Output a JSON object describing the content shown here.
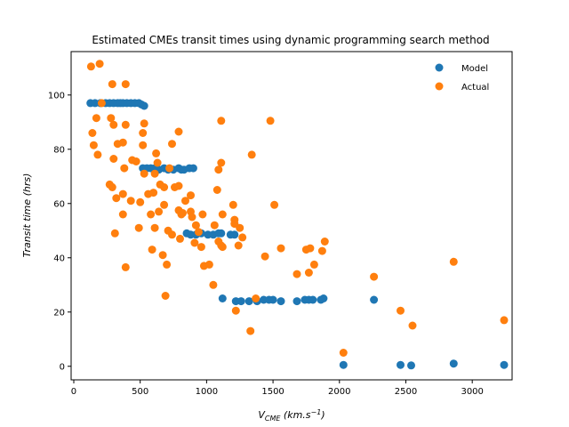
{
  "chart_data": {
    "type": "scatter",
    "title": "Estimated CMEs transit times using dynamic programming search method",
    "xlabel_main": "V",
    "xlabel_sub": "CME",
    "xlabel_units": " (km.s",
    "xlabel_exp": "−1",
    "xlabel_close": ")",
    "ylabel": "Transit time (hrs)",
    "xlim": [
      -20,
      3300
    ],
    "ylim": [
      -5,
      116
    ],
    "xticks": [
      0,
      500,
      1000,
      1500,
      2000,
      2500,
      3000
    ],
    "yticks": [
      0,
      20,
      40,
      60,
      80,
      100
    ],
    "grid": false,
    "legend_position": "top-right",
    "series": [
      {
        "name": "Model",
        "color": "#1f77b4",
        "points": [
          [
            125,
            97
          ],
          [
            160,
            97
          ],
          [
            200,
            97
          ],
          [
            240,
            97
          ],
          [
            270,
            97
          ],
          [
            300,
            97
          ],
          [
            330,
            97
          ],
          [
            350,
            97
          ],
          [
            370,
            97
          ],
          [
            400,
            97
          ],
          [
            430,
            97
          ],
          [
            460,
            97
          ],
          [
            490,
            97
          ],
          [
            510,
            96.5
          ],
          [
            530,
            96
          ],
          [
            520,
            73
          ],
          [
            550,
            73
          ],
          [
            580,
            73
          ],
          [
            610,
            73
          ],
          [
            640,
            72.5
          ],
          [
            680,
            73
          ],
          [
            710,
            72.5
          ],
          [
            750,
            72.5
          ],
          [
            790,
            73
          ],
          [
            810,
            72.5
          ],
          [
            830,
            72.5
          ],
          [
            870,
            73
          ],
          [
            900,
            73
          ],
          [
            850,
            49
          ],
          [
            880,
            48.5
          ],
          [
            920,
            48.5
          ],
          [
            960,
            49
          ],
          [
            1010,
            48.5
          ],
          [
            1050,
            48.5
          ],
          [
            1090,
            49
          ],
          [
            1110,
            49
          ],
          [
            1180,
            48.5
          ],
          [
            1210,
            48.5
          ],
          [
            1120,
            25
          ],
          [
            1220,
            24
          ],
          [
            1260,
            24
          ],
          [
            1320,
            24
          ],
          [
            1380,
            24
          ],
          [
            1430,
            24.5
          ],
          [
            1470,
            24.5
          ],
          [
            1500,
            24.5
          ],
          [
            1560,
            24
          ],
          [
            1680,
            24
          ],
          [
            1740,
            24.5
          ],
          [
            1770,
            24.5
          ],
          [
            1800,
            24.5
          ],
          [
            1860,
            24.5
          ],
          [
            1880,
            25
          ],
          [
            2260,
            24.5
          ],
          [
            2030,
            0.5
          ],
          [
            2460,
            0.5
          ],
          [
            2540,
            0.3
          ],
          [
            2860,
            1
          ],
          [
            3240,
            0.5
          ]
        ]
      },
      {
        "name": "Actual",
        "color": "#ff7f0e",
        "points": [
          [
            130,
            110.5
          ],
          [
            195,
            111.5
          ],
          [
            210,
            97
          ],
          [
            290,
            104
          ],
          [
            390,
            104
          ],
          [
            140,
            86
          ],
          [
            170,
            91.5
          ],
          [
            280,
            91.5
          ],
          [
            300,
            89
          ],
          [
            390,
            89
          ],
          [
            150,
            81.5
          ],
          [
            180,
            78
          ],
          [
            330,
            82
          ],
          [
            370,
            82.5
          ],
          [
            520,
            86
          ],
          [
            530,
            89.5
          ],
          [
            520,
            81.5
          ],
          [
            620,
            78.5
          ],
          [
            740,
            82
          ],
          [
            790,
            86.5
          ],
          [
            270,
            67
          ],
          [
            290,
            66
          ],
          [
            300,
            76.5
          ],
          [
            320,
            62
          ],
          [
            370,
            63.5
          ],
          [
            380,
            73
          ],
          [
            430,
            61
          ],
          [
            440,
            76
          ],
          [
            470,
            75.5
          ],
          [
            500,
            60.5
          ],
          [
            530,
            71
          ],
          [
            560,
            63.5
          ],
          [
            600,
            64
          ],
          [
            610,
            71
          ],
          [
            630,
            75
          ],
          [
            650,
            67
          ],
          [
            680,
            66
          ],
          [
            720,
            73
          ],
          [
            760,
            66
          ],
          [
            790,
            66.5
          ],
          [
            810,
            56
          ],
          [
            840,
            61
          ],
          [
            880,
            63
          ],
          [
            310,
            49
          ],
          [
            370,
            56
          ],
          [
            390,
            36.5
          ],
          [
            490,
            51
          ],
          [
            580,
            56
          ],
          [
            590,
            43
          ],
          [
            610,
            51
          ],
          [
            640,
            57
          ],
          [
            670,
            41
          ],
          [
            680,
            59.5
          ],
          [
            690,
            26
          ],
          [
            700,
            37.5
          ],
          [
            710,
            50
          ],
          [
            740,
            48.5
          ],
          [
            790,
            57.5
          ],
          [
            800,
            47
          ],
          [
            820,
            56.5
          ],
          [
            880,
            57
          ],
          [
            890,
            55
          ],
          [
            910,
            45.5
          ],
          [
            920,
            52
          ],
          [
            940,
            49.5
          ],
          [
            960,
            44
          ],
          [
            970,
            56
          ],
          [
            980,
            37
          ],
          [
            1020,
            37.5
          ],
          [
            1050,
            30
          ],
          [
            1080,
            65
          ],
          [
            1090,
            72.5
          ],
          [
            1110,
            75
          ],
          [
            1120,
            56
          ],
          [
            1060,
            52
          ],
          [
            1090,
            46
          ],
          [
            1110,
            44.5
          ],
          [
            1120,
            44
          ],
          [
            1200,
            59.5
          ],
          [
            1210,
            54
          ],
          [
            1220,
            20.5
          ],
          [
            1240,
            44.5
          ],
          [
            1250,
            51
          ],
          [
            1270,
            47.5
          ],
          [
            1210,
            52.5
          ],
          [
            1110,
            90.5
          ],
          [
            1340,
            78
          ],
          [
            1330,
            13
          ],
          [
            1370,
            25
          ],
          [
            1440,
            40.5
          ],
          [
            1480,
            90.5
          ],
          [
            1510,
            59.5
          ],
          [
            1560,
            43.5
          ],
          [
            1680,
            34
          ],
          [
            1750,
            43
          ],
          [
            1770,
            34.5
          ],
          [
            1780,
            43.5
          ],
          [
            1810,
            37.5
          ],
          [
            1870,
            42.5
          ],
          [
            1890,
            46
          ],
          [
            2030,
            5
          ],
          [
            2260,
            33
          ],
          [
            2460,
            20.5
          ],
          [
            2550,
            15
          ],
          [
            2860,
            38.5
          ],
          [
            3240,
            17
          ]
        ]
      }
    ]
  }
}
